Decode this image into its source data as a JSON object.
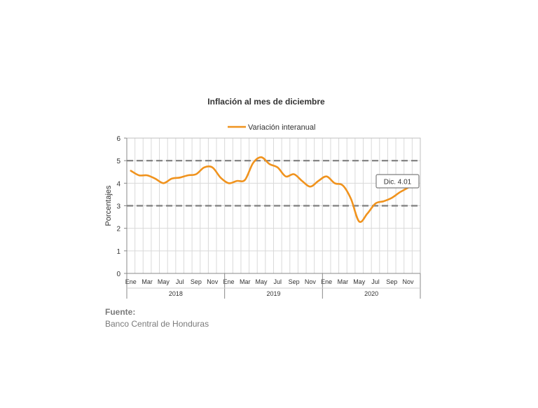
{
  "chart_data": {
    "type": "line",
    "title": "Inflación al mes de diciembre",
    "ylabel": "Porcentajes",
    "ylim": [
      0,
      6
    ],
    "yticks": [
      "0",
      "1",
      "2",
      "3",
      "4",
      "5",
      "6"
    ],
    "month_labels": [
      "Ene",
      "Mar",
      "May",
      "Jul",
      "Sep",
      "Nov"
    ],
    "years": [
      "2018",
      "2019",
      "2020"
    ],
    "reference_lines": [
      5,
      3
    ],
    "grid": true,
    "legend_position": "top",
    "series": [
      {
        "name": "Variación interanual",
        "color": "#f0931e",
        "x": [
          "2018-01",
          "2018-02",
          "2018-03",
          "2018-04",
          "2018-05",
          "2018-06",
          "2018-07",
          "2018-08",
          "2018-09",
          "2018-10",
          "2018-11",
          "2018-12",
          "2019-01",
          "2019-02",
          "2019-03",
          "2019-04",
          "2019-05",
          "2019-06",
          "2019-07",
          "2019-08",
          "2019-09",
          "2019-10",
          "2019-11",
          "2019-12",
          "2020-01",
          "2020-02",
          "2020-03",
          "2020-04",
          "2020-05",
          "2020-06",
          "2020-07",
          "2020-08",
          "2020-09",
          "2020-10",
          "2020-11",
          "2020-12"
        ],
        "values": [
          4.55,
          4.35,
          4.35,
          4.2,
          4.0,
          4.2,
          4.25,
          4.35,
          4.4,
          4.7,
          4.7,
          4.25,
          4.0,
          4.1,
          4.15,
          4.9,
          5.15,
          4.85,
          4.7,
          4.3,
          4.4,
          4.1,
          3.85,
          4.1,
          4.3,
          4.0,
          3.9,
          3.3,
          2.3,
          2.65,
          3.1,
          3.2,
          3.35,
          3.6,
          3.8,
          4.01
        ]
      }
    ],
    "annotation": {
      "text": "Dic. 4.01"
    }
  },
  "source": {
    "label": "Fuente:",
    "value": "Banco Central de Honduras"
  }
}
